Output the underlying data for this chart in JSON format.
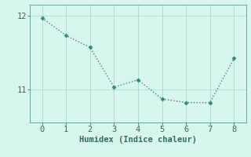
{
  "x": [
    0,
    1,
    2,
    3,
    4,
    5,
    6,
    7,
    8
  ],
  "y": [
    11.97,
    11.73,
    11.57,
    11.03,
    11.13,
    10.87,
    10.82,
    10.82,
    11.42
  ],
  "line_color": "#2e8b7a",
  "marker_style": "D",
  "marker_size": 2.5,
  "bg_color": "#d8f5ee",
  "grid_color": "#b0d9ce",
  "xlabel": "Humidex (Indice chaleur)",
  "xlabel_fontsize": 7.5,
  "tick_fontsize": 7.5,
  "ylim": [
    10.55,
    12.15
  ],
  "xlim": [
    -0.5,
    8.5
  ],
  "yticks": [
    11,
    12
  ],
  "xticks": [
    0,
    1,
    2,
    3,
    4,
    5,
    6,
    7,
    8
  ],
  "linewidth": 1.0,
  "tick_color": "#2e6b5e",
  "axis_color": "#5a9a8a"
}
